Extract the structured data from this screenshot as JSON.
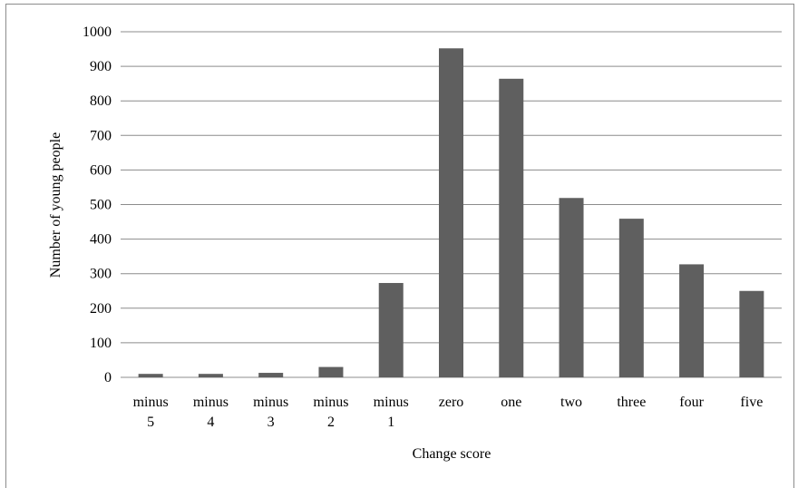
{
  "chart_data": {
    "type": "bar",
    "categories": [
      [
        "minus",
        "5"
      ],
      [
        "minus",
        "4"
      ],
      [
        "minus",
        "3"
      ],
      [
        "minus",
        "2"
      ],
      [
        "minus",
        "1"
      ],
      [
        "zero"
      ],
      [
        "one"
      ],
      [
        "two"
      ],
      [
        "three"
      ],
      [
        "four"
      ],
      [
        "five"
      ]
    ],
    "values": [
      10,
      10,
      13,
      30,
      273,
      952,
      864,
      519,
      459,
      327,
      250
    ],
    "xlabel": "Change score",
    "ylabel": "Number of young people",
    "ylim": [
      0,
      1000
    ],
    "yticks": [
      0,
      100,
      200,
      300,
      400,
      500,
      600,
      700,
      800,
      900,
      1000
    ],
    "grid": true,
    "bar_color": "#5f5f5f",
    "grid_color": "#8c8c8c"
  }
}
